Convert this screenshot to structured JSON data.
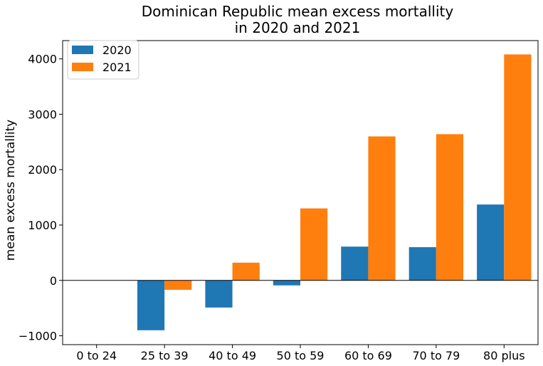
{
  "chart_data": {
    "type": "bar",
    "title_line1": "Dominican Republic mean excess mortallity",
    "title_line2": "in 2020 and 2021",
    "xlabel": "",
    "ylabel": "mean excess mortallity",
    "categories": [
      "0 to 24",
      "25 to 39",
      "40 to 49",
      "50 to 59",
      "60 to 69",
      "70 to 79",
      "80 plus"
    ],
    "series": [
      {
        "name": "2020",
        "color": "#1f77b4",
        "values": [
          0,
          -900,
          -490,
          -90,
          610,
          600,
          1370
        ]
      },
      {
        "name": "2021",
        "color": "#ff7f0e",
        "values": [
          0,
          -170,
          320,
          1300,
          2600,
          2640,
          4080
        ]
      }
    ],
    "yticks": [
      -1000,
      0,
      1000,
      2000,
      3000,
      4000
    ],
    "ytick_labels": [
      "−1000",
      "0",
      "1000",
      "2000",
      "3000",
      "4000"
    ],
    "ylim": [
      -1160,
      4330
    ],
    "zero_line": true,
    "grid": false,
    "legend_position": "top-left"
  }
}
